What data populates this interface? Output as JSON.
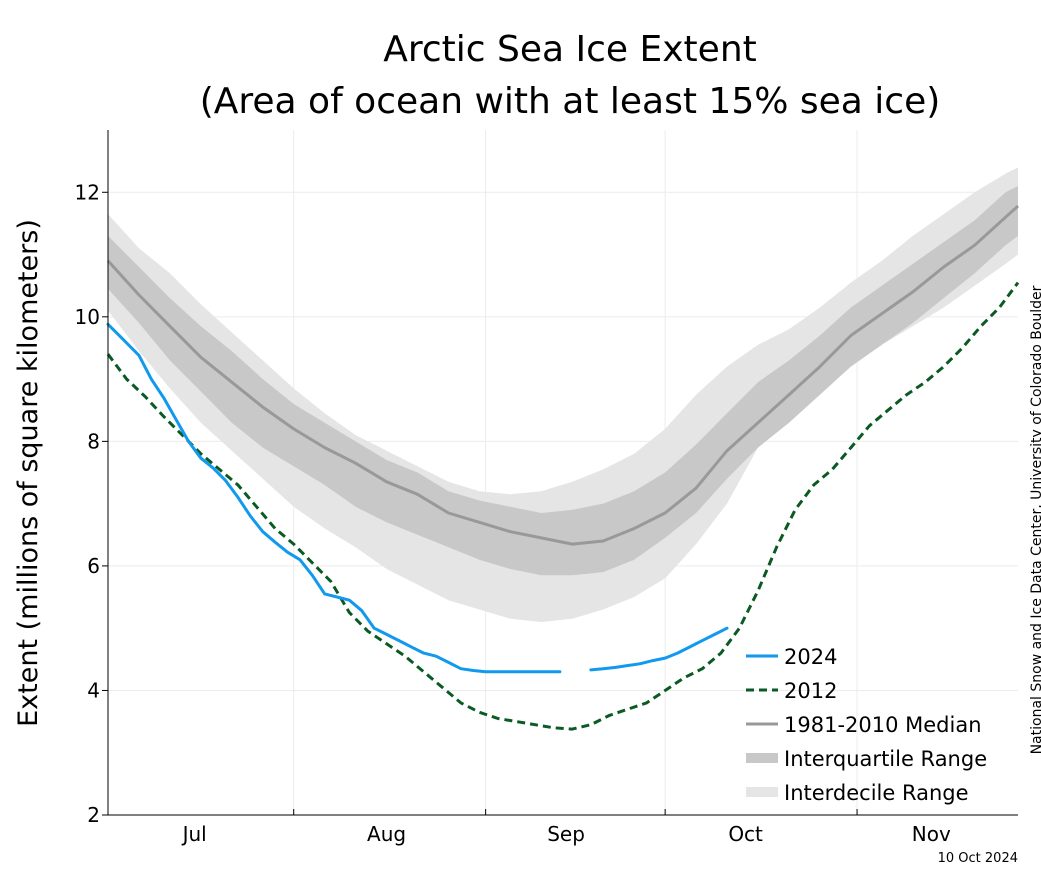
{
  "chart_data": {
    "type": "line",
    "title_line1": "Arctic Sea Ice Extent",
    "title_line2": "(Area of ocean with at least 15% sea ice)",
    "ylabel": "Extent (millions of square kilometers)",
    "ylim": [
      2,
      13
    ],
    "xlim": [
      0,
      147
    ],
    "yticks": [
      {
        "value": 2,
        "label": "2"
      },
      {
        "value": 4,
        "label": "4"
      },
      {
        "value": 6,
        "label": "6"
      },
      {
        "value": 8,
        "label": "8"
      },
      {
        "value": 10,
        "label": "10"
      },
      {
        "value": 12,
        "label": "12"
      }
    ],
    "month_ticks": [
      {
        "label": "Jul",
        "day": 14
      },
      {
        "label": "Aug",
        "day": 45
      },
      {
        "label": "Sep",
        "day": 74
      },
      {
        "label": "Oct",
        "day": 103
      },
      {
        "label": "Nov",
        "day": 133
      }
    ],
    "grid_days": [
      0,
      30,
      61,
      90,
      121
    ],
    "x_unit": "days since 17 Jun",
    "credit": "National Snow and Ice Data Center, University of Colorado Boulder",
    "date_stamp": "10 Oct 2024",
    "legend": [
      {
        "label": "2024",
        "style": "blue-solid"
      },
      {
        "label": "2012",
        "style": "green-dashed"
      },
      {
        "label": "1981-2010 Median",
        "style": "gray-solid"
      },
      {
        "label": "Interquartile Range",
        "style": "gray-band-dark"
      },
      {
        "label": "Interdecile Range",
        "style": "gray-band-light"
      }
    ],
    "colors": {
      "series_2024": "#1199ee",
      "series_2012": "#0a5a23",
      "median": "#999999",
      "interquartile": "#c8c8c8",
      "interdecile": "#e5e5e5",
      "grid": "#ececec"
    },
    "series": [
      {
        "name": "2024",
        "segments": [
          {
            "x": [
              0,
              2,
              5,
              7,
              9,
              11,
              13,
              15,
              17,
              19,
              21,
              23,
              25,
              27,
              29,
              31,
              33,
              35,
              37,
              39,
              41,
              43,
              45,
              47,
              49,
              51,
              53,
              55,
              57,
              59,
              61,
              63,
              65,
              67,
              69,
              71,
              73
            ],
            "y": [
              9.88,
              9.68,
              9.38,
              9.0,
              8.7,
              8.35,
              8.0,
              7.73,
              7.57,
              7.37,
              7.1,
              6.8,
              6.55,
              6.38,
              6.22,
              6.1,
              5.85,
              5.55,
              5.5,
              5.45,
              5.28,
              5.0,
              4.9,
              4.8,
              4.7,
              4.6,
              4.55,
              4.45,
              4.35,
              4.32,
              4.3,
              4.3,
              4.3,
              4.3,
              4.3,
              4.3,
              4.3
            ]
          },
          {
            "x": [
              78,
              80,
              82,
              84,
              86,
              88,
              90,
              92,
              94,
              96,
              98,
              100
            ],
            "y": [
              4.33,
              4.35,
              4.37,
              4.4,
              4.43,
              4.48,
              4.52,
              4.6,
              4.7,
              4.8,
              4.9,
              5.0
            ]
          }
        ]
      },
      {
        "name": "2012",
        "x": [
          0,
          3,
          6,
          9,
          12,
          15,
          18,
          21,
          24,
          27,
          30,
          33,
          36,
          39,
          42,
          45,
          48,
          51,
          54,
          57,
          60,
          63,
          66,
          69,
          72,
          75,
          78,
          81,
          84,
          87,
          90,
          93,
          96,
          99,
          102,
          105,
          108,
          111,
          114,
          117,
          120,
          123,
          126,
          129,
          132,
          135,
          138,
          141,
          144,
          147
        ],
        "y": [
          9.4,
          9.0,
          8.72,
          8.4,
          8.1,
          7.8,
          7.55,
          7.3,
          6.95,
          6.6,
          6.35,
          6.05,
          5.75,
          5.25,
          4.95,
          4.75,
          4.55,
          4.3,
          4.05,
          3.8,
          3.65,
          3.55,
          3.5,
          3.45,
          3.4,
          3.38,
          3.45,
          3.6,
          3.7,
          3.8,
          4.0,
          4.2,
          4.35,
          4.6,
          5.0,
          5.6,
          6.3,
          6.9,
          7.3,
          7.55,
          7.9,
          8.25,
          8.5,
          8.75,
          8.95,
          9.2,
          9.5,
          9.85,
          10.15,
          10.55
        ]
      },
      {
        "name": "1981-2010 Median",
        "x": [
          0,
          5,
          10,
          15,
          20,
          25,
          30,
          35,
          40,
          45,
          50,
          55,
          60,
          65,
          70,
          75,
          80,
          85,
          90,
          95,
          100,
          105,
          110,
          115,
          120,
          125,
          130,
          135,
          140,
          145,
          147
        ],
        "y": [
          10.9,
          10.35,
          9.85,
          9.35,
          8.95,
          8.55,
          8.2,
          7.9,
          7.65,
          7.35,
          7.15,
          6.85,
          6.7,
          6.55,
          6.45,
          6.35,
          6.4,
          6.6,
          6.85,
          7.25,
          7.85,
          8.3,
          8.75,
          9.2,
          9.7,
          10.05,
          10.4,
          10.8,
          11.15,
          11.6,
          11.78
        ]
      }
    ],
    "bands": [
      {
        "name": "Interquartile Range",
        "x": [
          0,
          5,
          10,
          15,
          20,
          25,
          30,
          35,
          40,
          45,
          50,
          55,
          60,
          65,
          70,
          75,
          80,
          85,
          90,
          95,
          100,
          105,
          110,
          115,
          120,
          125,
          130,
          135,
          140,
          145,
          147
        ],
        "upper": [
          11.3,
          10.8,
          10.3,
          9.85,
          9.45,
          9.0,
          8.6,
          8.3,
          8.0,
          7.7,
          7.5,
          7.2,
          7.05,
          6.95,
          6.85,
          6.9,
          7.0,
          7.2,
          7.5,
          7.95,
          8.45,
          8.95,
          9.3,
          9.7,
          10.15,
          10.5,
          10.85,
          11.2,
          11.55,
          12.0,
          12.1
        ],
        "lower": [
          10.45,
          9.9,
          9.3,
          8.8,
          8.3,
          7.9,
          7.6,
          7.3,
          6.95,
          6.7,
          6.5,
          6.3,
          6.1,
          5.95,
          5.85,
          5.85,
          5.9,
          6.1,
          6.45,
          6.85,
          7.4,
          7.9,
          8.3,
          8.75,
          9.2,
          9.55,
          9.9,
          10.3,
          10.7,
          11.15,
          11.3
        ]
      },
      {
        "name": "Interdecile Range",
        "x": [
          0,
          5,
          10,
          15,
          20,
          25,
          30,
          35,
          40,
          45,
          50,
          55,
          60,
          65,
          70,
          75,
          80,
          85,
          90,
          95,
          100,
          105,
          110,
          115,
          120,
          125,
          130,
          135,
          140,
          145,
          147
        ],
        "upper": [
          11.65,
          11.1,
          10.7,
          10.2,
          9.75,
          9.3,
          8.85,
          8.45,
          8.1,
          7.85,
          7.6,
          7.35,
          7.2,
          7.15,
          7.2,
          7.35,
          7.55,
          7.8,
          8.2,
          8.75,
          9.2,
          9.55,
          9.8,
          10.15,
          10.55,
          10.9,
          11.3,
          11.65,
          12.0,
          12.3,
          12.4
        ],
        "lower": [
          10.1,
          9.45,
          8.85,
          8.3,
          7.85,
          7.4,
          6.95,
          6.6,
          6.3,
          5.95,
          5.7,
          5.45,
          5.3,
          5.15,
          5.1,
          5.15,
          5.3,
          5.5,
          5.8,
          6.35,
          7.0,
          7.9,
          8.5,
          8.85,
          9.2,
          9.55,
          9.85,
          10.15,
          10.5,
          10.85,
          11.0
        ]
      }
    ]
  }
}
